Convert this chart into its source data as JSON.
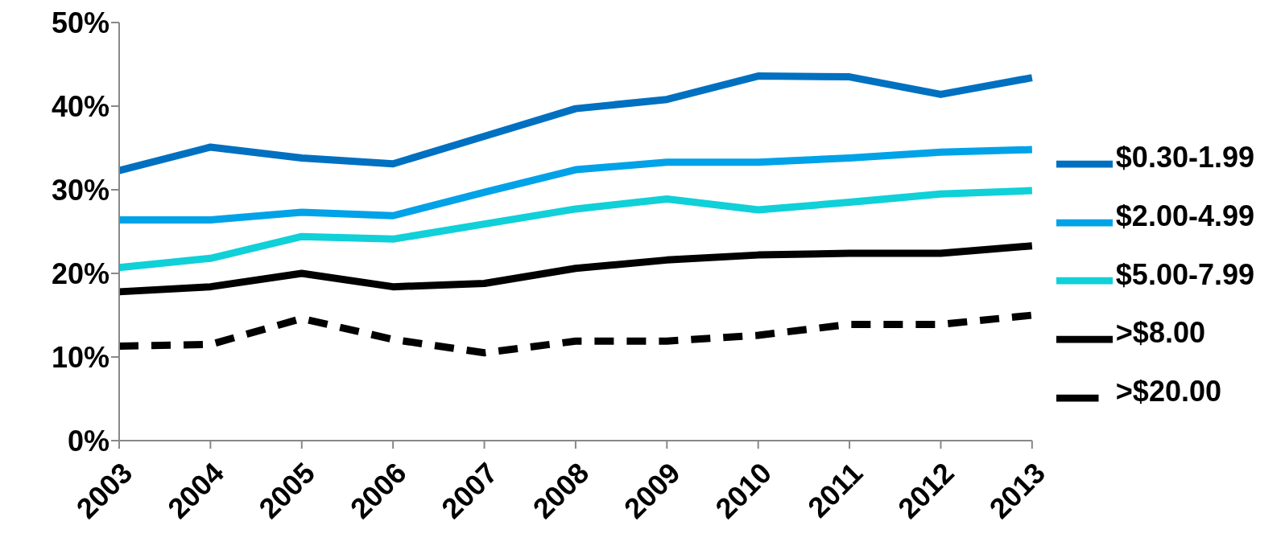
{
  "chart_data": {
    "type": "line",
    "categories": [
      "2003",
      "2004",
      "2005",
      "2006",
      "2007",
      "2008",
      "2009",
      "2010",
      "2011",
      "2012",
      "2013"
    ],
    "ylim": [
      0,
      50
    ],
    "yticks": [
      {
        "value": 0,
        "label": "0%"
      },
      {
        "value": 10,
        "label": "10%"
      },
      {
        "value": 20,
        "label": "20%"
      },
      {
        "value": 30,
        "label": "30%"
      },
      {
        "value": 40,
        "label": "40%"
      },
      {
        "value": 50,
        "label": "50%"
      }
    ],
    "grid": false,
    "legend": "right",
    "marker": "none",
    "series": [
      {
        "name": "$0.30-1.99",
        "color": "#0070c0",
        "line_style": "solid",
        "values": [
          32.3,
          35.1,
          33.8,
          33.1,
          36.4,
          39.7,
          40.8,
          43.6,
          43.5,
          41.4,
          43.4
        ]
      },
      {
        "name": "$2.00-4.99",
        "color": "#00a2e8",
        "line_style": "solid",
        "values": [
          26.4,
          26.4,
          27.3,
          26.9,
          29.7,
          32.4,
          33.3,
          33.3,
          33.8,
          34.5,
          34.8
        ]
      },
      {
        "name": "$5.00-7.99",
        "color": "#10d0d8",
        "line_style": "solid",
        "values": [
          20.7,
          21.8,
          24.4,
          24.1,
          25.9,
          27.7,
          28.9,
          27.6,
          28.5,
          29.5,
          29.9
        ]
      },
      {
        "name": ">$8.00",
        "color": "#000000",
        "line_style": "solid",
        "values": [
          17.8,
          18.4,
          20.0,
          18.4,
          18.8,
          20.6,
          21.6,
          22.2,
          22.4,
          22.4,
          23.3
        ]
      },
      {
        "name": ">$20.00",
        "color": "#000000",
        "line_style": "dashed",
        "values": [
          11.3,
          11.5,
          14.6,
          12.1,
          10.5,
          11.9,
          11.9,
          12.6,
          13.9,
          13.9,
          15.0
        ]
      }
    ]
  }
}
